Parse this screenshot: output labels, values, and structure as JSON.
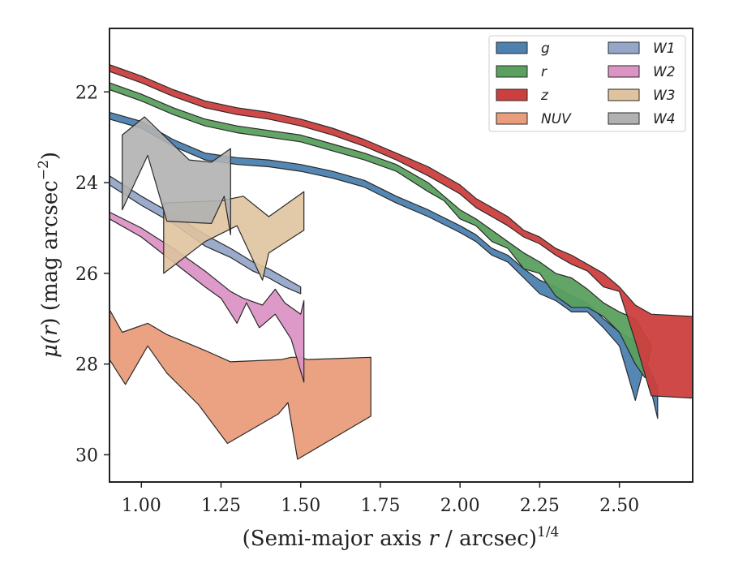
{
  "chart_data": {
    "type": "area",
    "xlabel": "(Semi-major axis r / arcsec)",
    "xlabel_prefix": "(Semi-major axis ",
    "xlabel_var": "r",
    "xlabel_suffix": " / arcsec)",
    "xlabel_exp": "1/4",
    "ylabel": "μ(r) (mag arcsec−2)",
    "ylabel_mu": "μ(",
    "ylabel_var": "r",
    "ylabel_mid": ") (mag arcsec",
    "ylabel_exp": "−2",
    "ylabel_end": ")",
    "xlim": [
      0.9,
      2.73
    ],
    "ylim": [
      30.6,
      20.6
    ],
    "y_inverted": true,
    "x_ticks": [
      1.0,
      1.25,
      1.5,
      1.75,
      2.0,
      2.25,
      2.5
    ],
    "x_tick_labels": [
      "1.00",
      "1.25",
      "1.50",
      "1.75",
      "2.00",
      "2.25",
      "2.50"
    ],
    "y_ticks": [
      22,
      24,
      26,
      28,
      30
    ],
    "y_tick_labels": [
      "22",
      "24",
      "26",
      "28",
      "30"
    ],
    "grid": false,
    "legend_placement": "top-right",
    "legend_columns": 2,
    "series": [
      {
        "name": "g",
        "color": "#4c81b0",
        "upper": [
          [
            0.9,
            22.45
          ],
          [
            1.0,
            22.65
          ],
          [
            1.1,
            23.05
          ],
          [
            1.2,
            23.35
          ],
          [
            1.3,
            23.45
          ],
          [
            1.4,
            23.5
          ],
          [
            1.5,
            23.6
          ],
          [
            1.6,
            23.75
          ],
          [
            1.7,
            23.95
          ],
          [
            1.8,
            24.3
          ],
          [
            1.9,
            24.6
          ],
          [
            2.0,
            24.95
          ],
          [
            2.05,
            25.15
          ],
          [
            2.1,
            25.45
          ],
          [
            2.15,
            25.6
          ],
          [
            2.2,
            25.9
          ],
          [
            2.25,
            26.15
          ],
          [
            2.3,
            26.3
          ],
          [
            2.35,
            26.5
          ],
          [
            2.4,
            26.65
          ],
          [
            2.45,
            27.0
          ],
          [
            2.5,
            27.3
          ],
          [
            2.55,
            27.5
          ],
          [
            2.6,
            28.2
          ],
          [
            2.62,
            28.5
          ]
        ],
        "lower": [
          [
            0.9,
            22.6
          ],
          [
            1.0,
            22.8
          ],
          [
            1.1,
            23.2
          ],
          [
            1.2,
            23.5
          ],
          [
            1.3,
            23.6
          ],
          [
            1.4,
            23.65
          ],
          [
            1.5,
            23.75
          ],
          [
            1.6,
            23.9
          ],
          [
            1.7,
            24.1
          ],
          [
            1.8,
            24.45
          ],
          [
            1.9,
            24.75
          ],
          [
            2.0,
            25.1
          ],
          [
            2.05,
            25.3
          ],
          [
            2.1,
            25.6
          ],
          [
            2.15,
            25.75
          ],
          [
            2.2,
            26.1
          ],
          [
            2.25,
            26.45
          ],
          [
            2.3,
            26.6
          ],
          [
            2.35,
            26.85
          ],
          [
            2.4,
            26.85
          ],
          [
            2.45,
            27.2
          ],
          [
            2.5,
            27.6
          ],
          [
            2.55,
            28.8
          ],
          [
            2.58,
            28.0
          ],
          [
            2.62,
            29.2
          ]
        ]
      },
      {
        "name": "r",
        "color": "#5aa05f",
        "upper": [
          [
            0.9,
            21.8
          ],
          [
            1.0,
            22.05
          ],
          [
            1.1,
            22.35
          ],
          [
            1.2,
            22.6
          ],
          [
            1.3,
            22.75
          ],
          [
            1.4,
            22.85
          ],
          [
            1.5,
            22.95
          ],
          [
            1.6,
            23.15
          ],
          [
            1.7,
            23.35
          ],
          [
            1.8,
            23.6
          ],
          [
            1.9,
            24.0
          ],
          [
            1.95,
            24.3
          ],
          [
            2.0,
            24.6
          ],
          [
            2.05,
            24.8
          ],
          [
            2.1,
            25.05
          ],
          [
            2.15,
            25.3
          ],
          [
            2.2,
            25.55
          ],
          [
            2.25,
            25.75
          ],
          [
            2.3,
            26.0
          ],
          [
            2.35,
            26.1
          ],
          [
            2.4,
            26.35
          ],
          [
            2.45,
            26.65
          ],
          [
            2.5,
            26.85
          ],
          [
            2.55,
            27.0
          ],
          [
            2.6,
            27.6
          ]
        ],
        "lower": [
          [
            0.9,
            21.95
          ],
          [
            1.0,
            22.2
          ],
          [
            1.1,
            22.5
          ],
          [
            1.2,
            22.75
          ],
          [
            1.3,
            22.9
          ],
          [
            1.4,
            23.0
          ],
          [
            1.5,
            23.1
          ],
          [
            1.6,
            23.3
          ],
          [
            1.7,
            23.5
          ],
          [
            1.8,
            23.75
          ],
          [
            1.9,
            24.2
          ],
          [
            1.95,
            24.4
          ],
          [
            2.0,
            24.8
          ],
          [
            2.05,
            24.95
          ],
          [
            2.1,
            25.3
          ],
          [
            2.15,
            25.45
          ],
          [
            2.2,
            25.9
          ],
          [
            2.25,
            26.0
          ],
          [
            2.3,
            26.5
          ],
          [
            2.35,
            26.75
          ],
          [
            2.4,
            26.75
          ],
          [
            2.45,
            26.95
          ],
          [
            2.5,
            27.3
          ],
          [
            2.55,
            28.0
          ],
          [
            2.58,
            28.3
          ]
        ]
      },
      {
        "name": "z",
        "color": "#cc3f3f",
        "upper": [
          [
            0.9,
            21.4
          ],
          [
            1.0,
            21.65
          ],
          [
            1.1,
            21.95
          ],
          [
            1.2,
            22.2
          ],
          [
            1.3,
            22.35
          ],
          [
            1.4,
            22.45
          ],
          [
            1.5,
            22.6
          ],
          [
            1.6,
            22.8
          ],
          [
            1.7,
            23.05
          ],
          [
            1.8,
            23.35
          ],
          [
            1.9,
            23.65
          ],
          [
            2.0,
            24.05
          ],
          [
            2.05,
            24.35
          ],
          [
            2.1,
            24.55
          ],
          [
            2.15,
            24.75
          ],
          [
            2.2,
            25.05
          ],
          [
            2.25,
            25.2
          ],
          [
            2.3,
            25.45
          ],
          [
            2.35,
            25.6
          ],
          [
            2.4,
            25.8
          ],
          [
            2.45,
            26.0
          ],
          [
            2.5,
            26.3
          ],
          [
            2.55,
            26.7
          ],
          [
            2.6,
            26.9
          ],
          [
            2.73,
            26.95
          ]
        ],
        "lower": [
          [
            0.9,
            21.55
          ],
          [
            1.0,
            21.8
          ],
          [
            1.1,
            22.1
          ],
          [
            1.2,
            22.35
          ],
          [
            1.3,
            22.5
          ],
          [
            1.4,
            22.6
          ],
          [
            1.5,
            22.75
          ],
          [
            1.6,
            22.95
          ],
          [
            1.7,
            23.2
          ],
          [
            1.8,
            23.5
          ],
          [
            1.9,
            23.85
          ],
          [
            2.0,
            24.25
          ],
          [
            2.05,
            24.55
          ],
          [
            2.1,
            24.75
          ],
          [
            2.15,
            24.95
          ],
          [
            2.2,
            25.2
          ],
          [
            2.25,
            25.35
          ],
          [
            2.3,
            25.6
          ],
          [
            2.35,
            25.8
          ],
          [
            2.4,
            25.95
          ],
          [
            2.45,
            26.3
          ],
          [
            2.5,
            26.4
          ],
          [
            2.55,
            27.5
          ],
          [
            2.6,
            28.7
          ],
          [
            2.73,
            28.75
          ]
        ]
      },
      {
        "name": "NUV",
        "color": "#e99d7c",
        "upper": [
          [
            0.9,
            26.8
          ],
          [
            0.94,
            27.3
          ],
          [
            1.02,
            27.1
          ],
          [
            1.08,
            27.35
          ],
          [
            1.2,
            27.7
          ],
          [
            1.28,
            27.95
          ],
          [
            1.44,
            27.9
          ],
          [
            1.47,
            27.85
          ],
          [
            1.5,
            27.85
          ],
          [
            1.52,
            27.9
          ],
          [
            1.72,
            27.85
          ]
        ],
        "lower": [
          [
            0.9,
            27.9
          ],
          [
            0.95,
            28.45
          ],
          [
            1.02,
            27.6
          ],
          [
            1.08,
            28.2
          ],
          [
            1.18,
            28.9
          ],
          [
            1.27,
            29.75
          ],
          [
            1.43,
            29.1
          ],
          [
            1.46,
            28.85
          ],
          [
            1.49,
            30.1
          ],
          [
            1.72,
            29.15
          ]
        ]
      },
      {
        "name": "W1",
        "color": "#95a7c9",
        "upper": [
          [
            0.9,
            23.85
          ],
          [
            1.0,
            24.3
          ],
          [
            1.1,
            24.7
          ],
          [
            1.2,
            25.15
          ],
          [
            1.28,
            25.45
          ],
          [
            1.35,
            25.75
          ],
          [
            1.4,
            25.9
          ],
          [
            1.45,
            26.1
          ],
          [
            1.5,
            26.3
          ]
        ],
        "lower": [
          [
            0.9,
            24.05
          ],
          [
            1.0,
            24.5
          ],
          [
            1.1,
            24.9
          ],
          [
            1.2,
            25.4
          ],
          [
            1.28,
            25.65
          ],
          [
            1.35,
            25.95
          ],
          [
            1.4,
            26.1
          ],
          [
            1.45,
            26.3
          ],
          [
            1.5,
            26.45
          ]
        ]
      },
      {
        "name": "W2",
        "color": "#db94c4",
        "upper": [
          [
            0.9,
            24.65
          ],
          [
            1.0,
            25.0
          ],
          [
            1.1,
            25.45
          ],
          [
            1.2,
            25.95
          ],
          [
            1.28,
            26.4
          ],
          [
            1.32,
            26.55
          ],
          [
            1.38,
            26.7
          ],
          [
            1.42,
            26.35
          ],
          [
            1.45,
            26.65
          ],
          [
            1.5,
            26.9
          ],
          [
            1.51,
            26.6
          ]
        ],
        "lower": [
          [
            0.9,
            24.8
          ],
          [
            1.0,
            25.2
          ],
          [
            1.1,
            25.75
          ],
          [
            1.2,
            26.3
          ],
          [
            1.25,
            26.55
          ],
          [
            1.3,
            27.1
          ],
          [
            1.33,
            26.65
          ],
          [
            1.37,
            27.2
          ],
          [
            1.42,
            26.9
          ],
          [
            1.47,
            27.45
          ],
          [
            1.51,
            28.4
          ]
        ]
      },
      {
        "name": "W3",
        "color": "#dfc39e",
        "upper": [
          [
            1.07,
            24.45
          ],
          [
            1.25,
            24.4
          ],
          [
            1.32,
            24.3
          ],
          [
            1.4,
            24.75
          ],
          [
            1.45,
            24.5
          ],
          [
            1.51,
            24.2
          ]
        ],
        "lower": [
          [
            1.07,
            26.0
          ],
          [
            1.2,
            25.3
          ],
          [
            1.3,
            24.95
          ],
          [
            1.38,
            26.15
          ],
          [
            1.4,
            25.55
          ],
          [
            1.51,
            25.05
          ]
        ]
      },
      {
        "name": "W4",
        "color": "#b1b1b1",
        "upper": [
          [
            0.94,
            22.95
          ],
          [
            1.01,
            22.55
          ],
          [
            1.15,
            23.5
          ],
          [
            1.22,
            23.55
          ],
          [
            1.28,
            23.25
          ]
        ],
        "lower": [
          [
            0.94,
            24.6
          ],
          [
            1.02,
            23.4
          ],
          [
            1.08,
            24.85
          ],
          [
            1.22,
            24.9
          ],
          [
            1.26,
            24.3
          ],
          [
            1.28,
            25.15
          ]
        ]
      }
    ]
  }
}
